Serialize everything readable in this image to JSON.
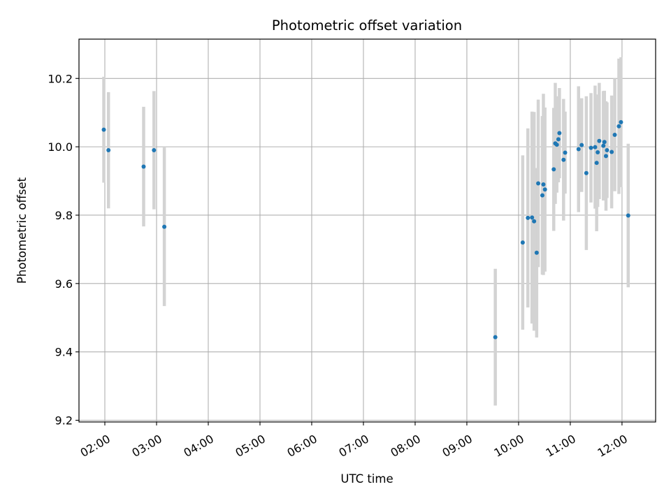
{
  "chart_data": {
    "type": "scatter",
    "title": "Photometric offset variation",
    "xlabel": "UTC time",
    "ylabel": "Photometric offset",
    "x_unit": "hours UTC",
    "xlim": [
      1.5,
      12.65
    ],
    "ylim": [
      9.195,
      10.315
    ],
    "xticks": [
      2,
      3,
      4,
      5,
      6,
      7,
      8,
      9,
      10,
      11,
      12
    ],
    "xtick_labels": [
      "02:00",
      "03:00",
      "04:00",
      "05:00",
      "06:00",
      "07:00",
      "08:00",
      "09:00",
      "10:00",
      "11:00",
      "12:00"
    ],
    "yticks": [
      9.2,
      9.4,
      9.6,
      9.8,
      10.0,
      10.2
    ],
    "ytick_labels": [
      "9.2",
      "9.4",
      "9.6",
      "9.8",
      "10.0",
      "10.2"
    ],
    "grid": true,
    "error_bars": true,
    "colors": {
      "points": "#1f77b4",
      "error_bars": "#d3d3d3",
      "grid": "#b0b0b0",
      "axes": "#000000"
    },
    "points": [
      {
        "x": 1.98,
        "y": 10.05,
        "err": 0.155
      },
      {
        "x": 2.07,
        "y": 9.99,
        "err": 0.17
      },
      {
        "x": 2.75,
        "y": 9.942,
        "err": 0.175
      },
      {
        "x": 2.95,
        "y": 9.99,
        "err": 0.173
      },
      {
        "x": 3.15,
        "y": 9.766,
        "err": 0.232
      },
      {
        "x": 9.55,
        "y": 9.443,
        "err": 0.2
      },
      {
        "x": 10.08,
        "y": 9.72,
        "err": 0.255
      },
      {
        "x": 10.18,
        "y": 9.792,
        "err": 0.262
      },
      {
        "x": 10.26,
        "y": 9.793,
        "err": 0.31
      },
      {
        "x": 10.3,
        "y": 9.782,
        "err": 0.32
      },
      {
        "x": 10.35,
        "y": 9.69,
        "err": 0.248
      },
      {
        "x": 10.38,
        "y": 9.893,
        "err": 0.245
      },
      {
        "x": 10.46,
        "y": 9.858,
        "err": 0.232
      },
      {
        "x": 10.48,
        "y": 9.89,
        "err": 0.265
      },
      {
        "x": 10.51,
        "y": 9.875,
        "err": 0.24
      },
      {
        "x": 10.68,
        "y": 9.934,
        "err": 0.18
      },
      {
        "x": 10.71,
        "y": 10.01,
        "err": 0.177
      },
      {
        "x": 10.74,
        "y": 10.006,
        "err": 0.14
      },
      {
        "x": 10.77,
        "y": 10.022,
        "err": 0.126
      },
      {
        "x": 10.79,
        "y": 10.04,
        "err": 0.132
      },
      {
        "x": 10.87,
        "y": 9.962,
        "err": 0.178
      },
      {
        "x": 10.9,
        "y": 9.983,
        "err": 0.12
      },
      {
        "x": 11.16,
        "y": 9.993,
        "err": 0.184
      },
      {
        "x": 11.22,
        "y": 10.005,
        "err": 0.137
      },
      {
        "x": 11.31,
        "y": 9.923,
        "err": 0.225
      },
      {
        "x": 11.4,
        "y": 9.997,
        "err": 0.16
      },
      {
        "x": 11.48,
        "y": 9.999,
        "err": 0.18
      },
      {
        "x": 11.51,
        "y": 9.953,
        "err": 0.2
      },
      {
        "x": 11.53,
        "y": 9.984,
        "err": 0.16
      },
      {
        "x": 11.56,
        "y": 10.017,
        "err": 0.17
      },
      {
        "x": 11.64,
        "y": 10.003,
        "err": 0.16
      },
      {
        "x": 11.66,
        "y": 10.014,
        "err": 0.15
      },
      {
        "x": 11.69,
        "y": 9.973,
        "err": 0.16
      },
      {
        "x": 11.71,
        "y": 9.99,
        "err": 0.14
      },
      {
        "x": 11.8,
        "y": 9.985,
        "err": 0.165
      },
      {
        "x": 11.86,
        "y": 10.035,
        "err": 0.165
      },
      {
        "x": 11.94,
        "y": 10.06,
        "err": 0.198
      },
      {
        "x": 11.98,
        "y": 10.072,
        "err": 0.19
      },
      {
        "x": 12.12,
        "y": 9.799,
        "err": 0.21
      }
    ]
  }
}
